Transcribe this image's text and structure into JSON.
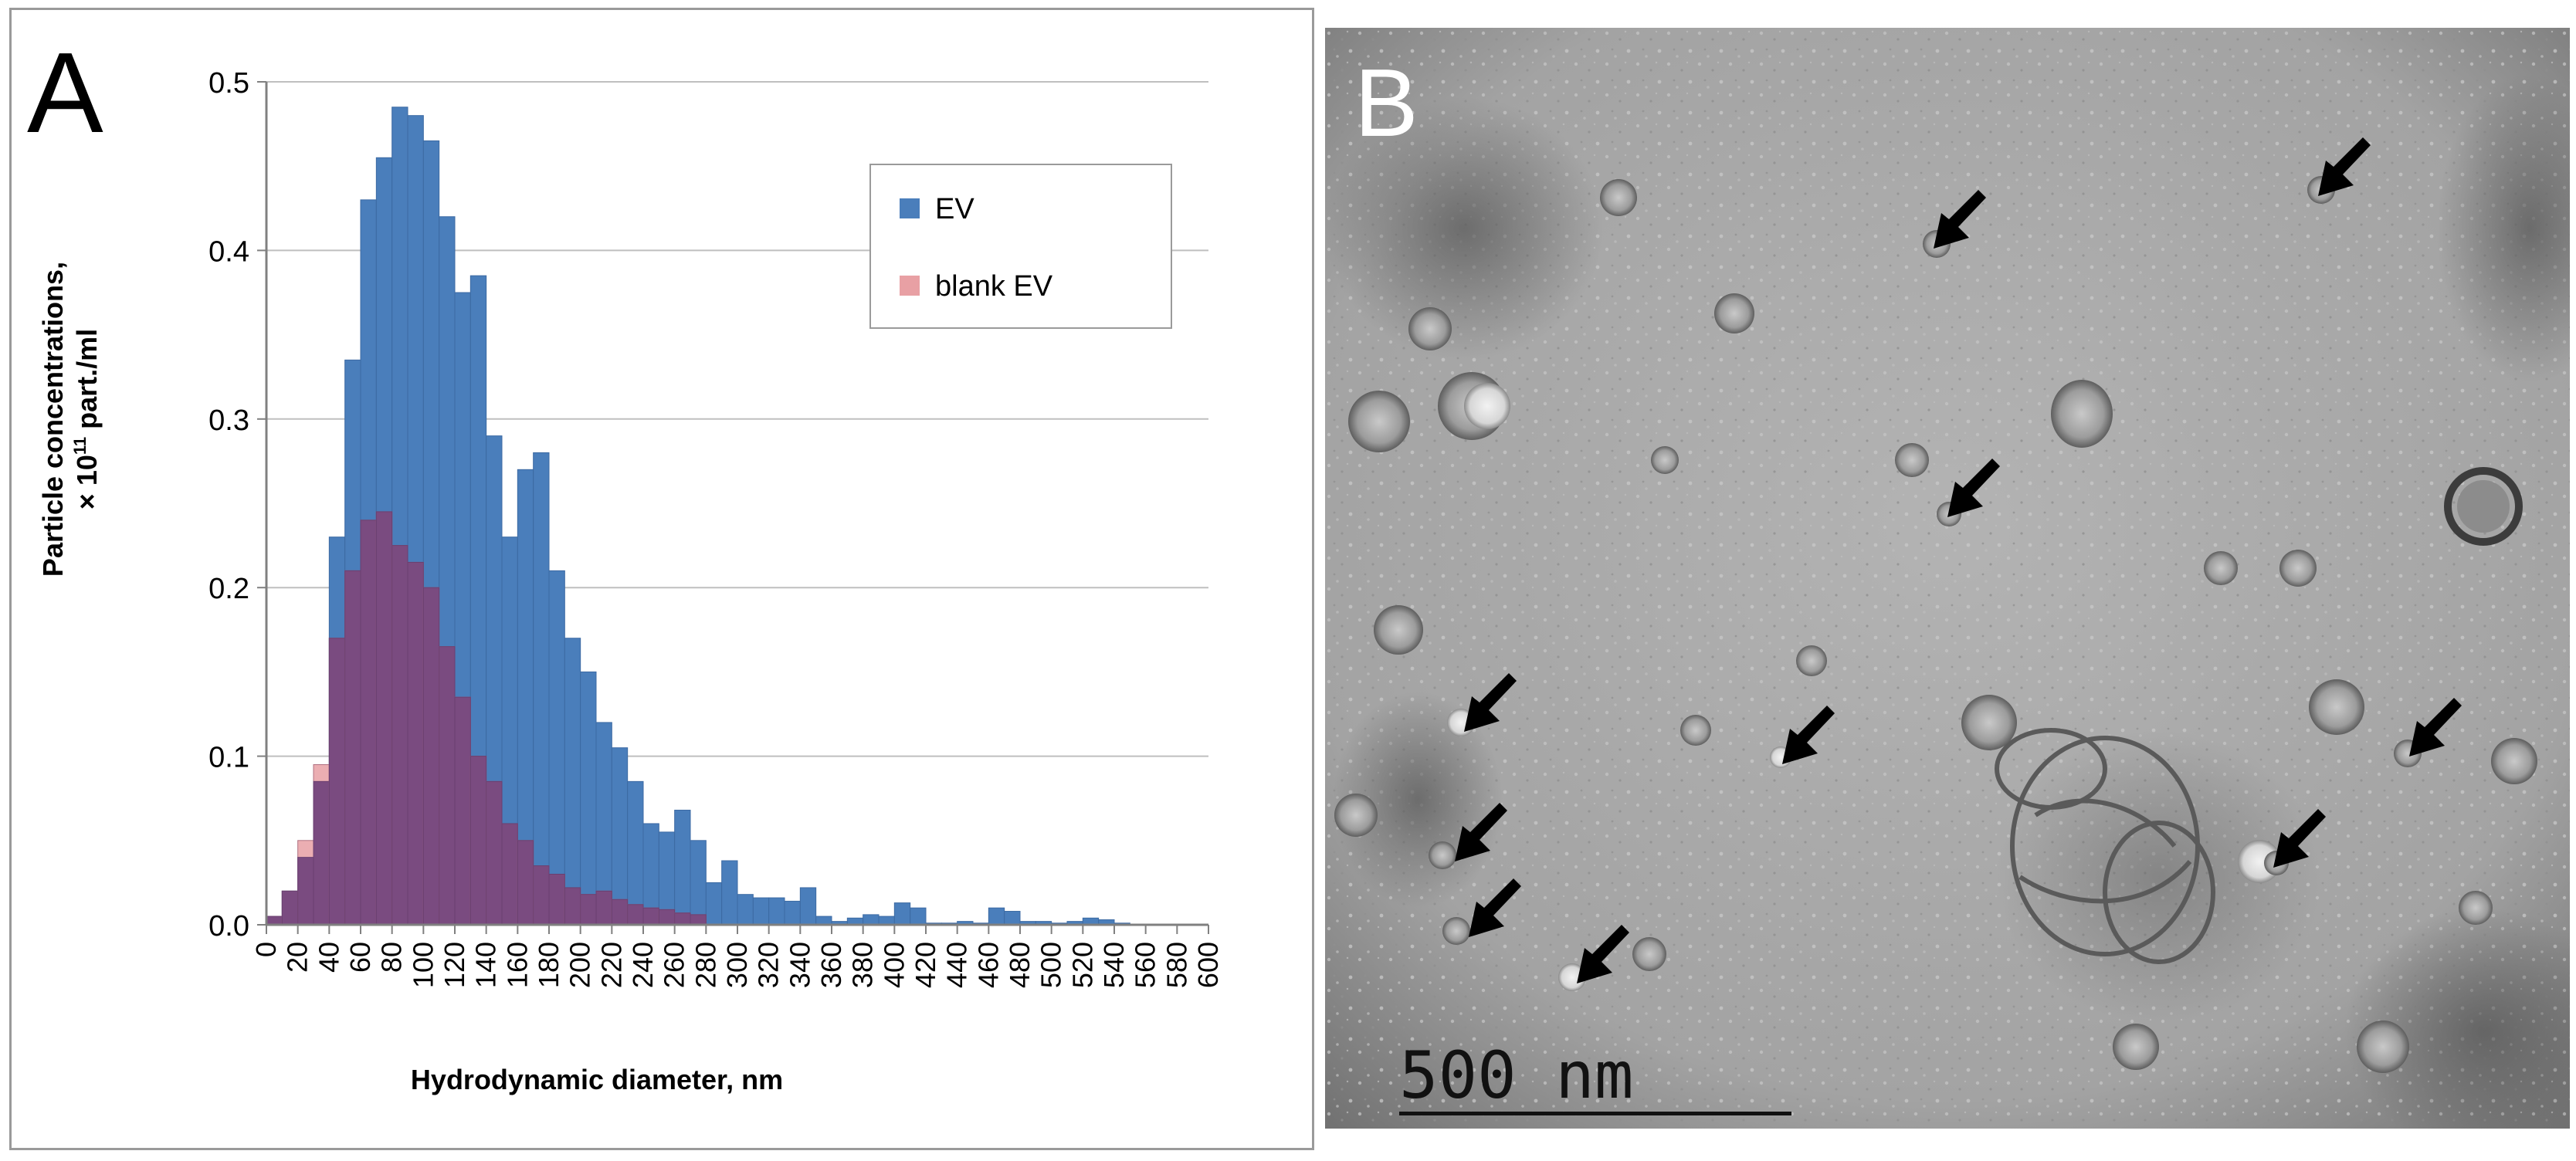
{
  "panels": {
    "a_label": "A",
    "b_label": "B"
  },
  "chart_data": {
    "type": "bar",
    "title": "",
    "xlabel": "Hydrodynamic diameter, nm",
    "ylabel_line1": "Particle concentrations,",
    "ylabel_line2_prefix": "× 10",
    "ylabel_line2_exp": "11",
    "ylabel_line2_suffix": " part./ml",
    "xlim": [
      0,
      600
    ],
    "ylim": [
      0,
      0.5
    ],
    "bin_width": 10,
    "x_ticks": [
      "0",
      "20",
      "40",
      "60",
      "80",
      "100",
      "120",
      "140",
      "160",
      "180",
      "200",
      "220",
      "240",
      "260",
      "280",
      "300",
      "320",
      "340",
      "360",
      "380",
      "400",
      "420",
      "440",
      "460",
      "480",
      "500",
      "520",
      "540",
      "560",
      "580",
      "600"
    ],
    "y_ticks": [
      "0.0",
      "0.1",
      "0.2",
      "0.3",
      "0.4",
      "0.5"
    ],
    "grid": true,
    "legend_position": "top-right",
    "colors": {
      "EV": "#4a7ebb",
      "blank EV": "#e8a0a4",
      "overlap": "#7a4b80",
      "grid": "#bfbfbf",
      "axis": "#808080"
    },
    "series": [
      {
        "name": "EV",
        "bin_start": [
          0,
          10,
          20,
          30,
          40,
          50,
          60,
          70,
          80,
          90,
          100,
          110,
          120,
          130,
          140,
          150,
          160,
          170,
          180,
          190,
          200,
          210,
          220,
          230,
          240,
          250,
          260,
          270,
          280,
          290,
          300,
          310,
          320,
          330,
          340,
          350,
          360,
          370,
          380,
          390,
          400,
          410,
          420,
          430,
          440,
          450,
          460,
          470,
          480,
          490,
          500,
          510,
          520,
          530,
          540
        ],
        "values": [
          0.005,
          0.02,
          0.04,
          0.085,
          0.23,
          0.335,
          0.43,
          0.455,
          0.485,
          0.48,
          0.465,
          0.42,
          0.375,
          0.385,
          0.29,
          0.23,
          0.27,
          0.28,
          0.21,
          0.17,
          0.15,
          0.12,
          0.105,
          0.085,
          0.06,
          0.055,
          0.068,
          0.05,
          0.025,
          0.038,
          0.018,
          0.016,
          0.016,
          0.014,
          0.022,
          0.005,
          0.002,
          0.004,
          0.006,
          0.005,
          0.013,
          0.01,
          0.001,
          0.001,
          0.002,
          0.001,
          0.01,
          0.008,
          0.002,
          0.002,
          0.001,
          0.002,
          0.004,
          0.003,
          0.001
        ]
      },
      {
        "name": "blank EV",
        "bin_start": [
          0,
          10,
          20,
          30,
          40,
          50,
          60,
          70,
          80,
          90,
          100,
          110,
          120,
          130,
          140,
          150,
          160,
          170,
          180,
          190,
          200,
          210,
          220,
          230,
          240,
          250,
          260,
          270
        ],
        "values": [
          0.005,
          0.02,
          0.05,
          0.095,
          0.17,
          0.21,
          0.24,
          0.245,
          0.225,
          0.215,
          0.2,
          0.165,
          0.135,
          0.1,
          0.085,
          0.06,
          0.05,
          0.035,
          0.03,
          0.022,
          0.018,
          0.02,
          0.015,
          0.012,
          0.01,
          0.009,
          0.007,
          0.006
        ]
      }
    ]
  },
  "tem": {
    "scale_bar_label": "500 nm"
  }
}
